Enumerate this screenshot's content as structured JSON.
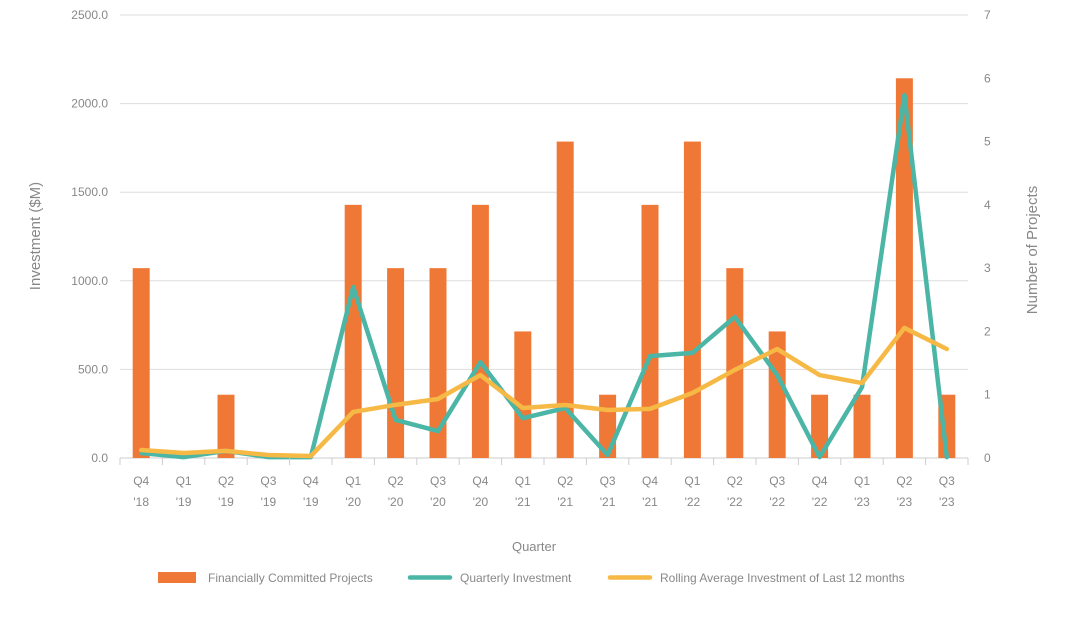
{
  "chart_data": {
    "type": "bar+line",
    "xlabel": "Quarter",
    "ylabel": "Investment ($M)",
    "y2label": "Number of Projects",
    "ylim": [
      0,
      2500
    ],
    "y2lim": [
      0,
      7
    ],
    "yticks": [
      "0.0",
      "500.0",
      "1000.0",
      "1500.0",
      "2000.0",
      "2500.0"
    ],
    "y2ticks": [
      "0",
      "1",
      "2",
      "3",
      "4",
      "5",
      "6",
      "7"
    ],
    "grid": true,
    "legend": "bottom",
    "categories": [
      [
        "Q4",
        "'18"
      ],
      [
        "Q1",
        "'19"
      ],
      [
        "Q2",
        "'19"
      ],
      [
        "Q3",
        "'19"
      ],
      [
        "Q4",
        "'19"
      ],
      [
        "Q1",
        "'20"
      ],
      [
        "Q2",
        "'20"
      ],
      [
        "Q3",
        "'20"
      ],
      [
        "Q4",
        "'20"
      ],
      [
        "Q1",
        "'21"
      ],
      [
        "Q2",
        "'21"
      ],
      [
        "Q3",
        "'21"
      ],
      [
        "Q4",
        "'21"
      ],
      [
        "Q1",
        "'22"
      ],
      [
        "Q2",
        "'22"
      ],
      [
        "Q3",
        "'22"
      ],
      [
        "Q4",
        "'22"
      ],
      [
        "Q1",
        "'23"
      ],
      [
        "Q2",
        "'23"
      ],
      [
        "Q3",
        "'23"
      ]
    ],
    "series": [
      {
        "name": "Financially Committed Projects",
        "type": "bar",
        "axis": "right",
        "color": "#F07836",
        "values": [
          3,
          0,
          1,
          0,
          0,
          4,
          3,
          3,
          4,
          2,
          5,
          1,
          4,
          5,
          3,
          2,
          1,
          1,
          6,
          1
        ]
      },
      {
        "name": "Quarterly Investment",
        "type": "line",
        "axis": "left",
        "color": "#4BB5A6",
        "values": [
          28,
          5,
          40,
          5,
          5,
          965,
          215,
          152,
          541,
          225,
          282,
          17,
          575,
          593,
          796,
          468,
          5,
          400,
          2048,
          5
        ]
      },
      {
        "name": "Rolling Average Investment of Last 12 months",
        "type": "line",
        "axis": "left",
        "color": "#F7B946",
        "values": [
          45,
          28,
          40,
          17,
          11,
          260,
          300,
          333,
          468,
          282,
          299,
          271,
          277,
          367,
          497,
          615,
          468,
          423,
          734,
          615
        ]
      }
    ]
  }
}
